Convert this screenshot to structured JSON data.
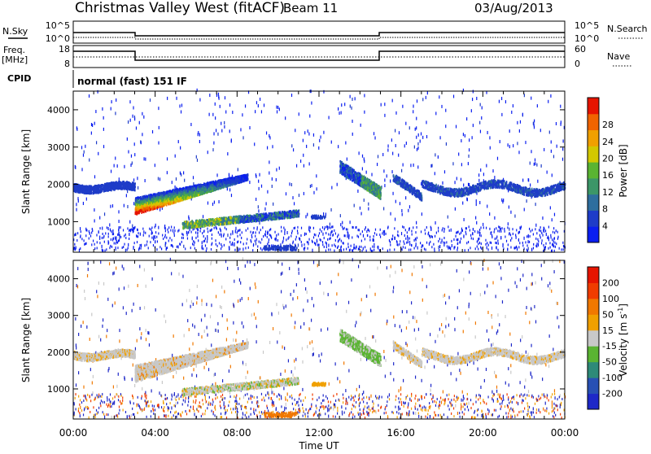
{
  "header": {
    "title": "Christmas Valley West (fitACF)",
    "beam": "Beam 11",
    "date": "03/Aug/2013"
  },
  "top_panels": {
    "nsky_label": "N.Sky",
    "nsky_ticks": [
      "10^5",
      "10^0"
    ],
    "nsearch_label": "N.Search",
    "nsearch_ticks": [
      "10^5",
      "10^0"
    ],
    "freq_label_1": "Freq.",
    "freq_label_2": "[MHz]",
    "freq_ticks": [
      "18",
      "8"
    ],
    "nave_label": "Nave",
    "nave_ticks": [
      "60",
      "0"
    ],
    "cpid_label": "CPID",
    "cpid_text": "normal (fast) 151 IF"
  },
  "chart_data": [
    {
      "type": "heatmap",
      "name": "power-panel",
      "ylabel": "Slant Range [km]",
      "yticks": [
        "1000",
        "2000",
        "3000",
        "4000"
      ],
      "ylim": [
        180,
        4500
      ],
      "xlim": [
        0,
        24
      ],
      "colorbar_label": "Power [dB]",
      "colorbar_ticks": [
        "4",
        "8",
        "12",
        "16",
        "20",
        "24",
        "28"
      ],
      "colorbar_colors": [
        "#0a1ef0",
        "#1e3cc8",
        "#2e6e9e",
        "#3c9668",
        "#5ab432",
        "#d2c800",
        "#f0a000",
        "#f06400",
        "#e61400"
      ]
    },
    {
      "type": "heatmap",
      "name": "velocity-panel",
      "ylabel": "Slant Range [km]",
      "yticks": [
        "1000",
        "2000",
        "3000",
        "4000"
      ],
      "ylim": [
        180,
        4500
      ],
      "xlim": [
        0,
        24
      ],
      "colorbar_label": "Velocity [m s",
      "colorbar_label_sup": "-1",
      "colorbar_label_end": "]",
      "colorbar_ticks": [
        "200",
        "100",
        "50",
        "15",
        "-15",
        "-50",
        "-100",
        "-200"
      ],
      "colorbar_colors": [
        "#1e28c8",
        "#2850b4",
        "#2e8a78",
        "#5ab432",
        "#c8c8c8",
        "#f0a000",
        "#f07800",
        "#f03c00",
        "#e61400"
      ]
    }
  ],
  "time_axis": {
    "ticks": [
      "00:00",
      "04:00",
      "08:00",
      "12:00",
      "16:00",
      "20:00",
      "00:00"
    ],
    "label": "Time UT"
  }
}
